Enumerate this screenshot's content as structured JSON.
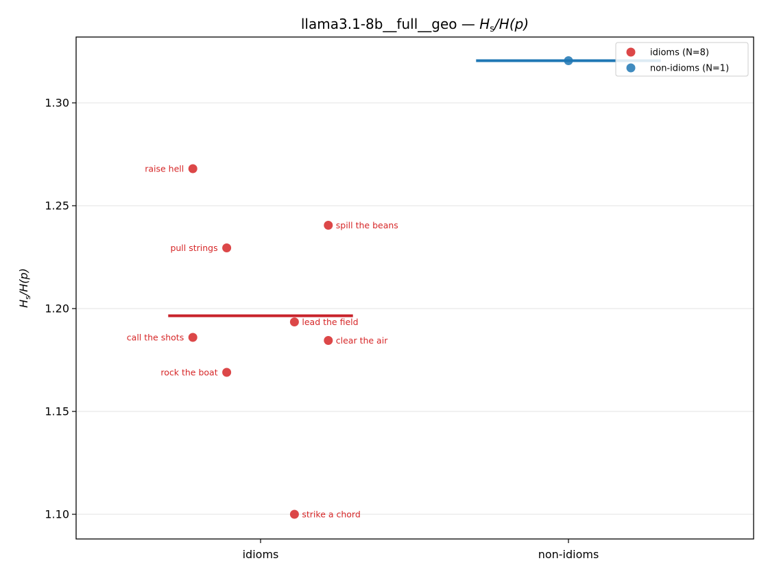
{
  "chart_data": {
    "type": "scatter",
    "title_main": "llama3.1-8b__full__geo — ",
    "title_math": "H",
    "title_math_sub": "s",
    "title_math_rest": "/H(p)",
    "ylabel_main": "H",
    "ylabel_sub": "s",
    "ylabel_rest": "/H(p)",
    "categories": [
      "idioms",
      "non-idioms"
    ],
    "ylim": [
      1.088,
      1.332
    ],
    "yticks": [
      "1.10",
      "1.15",
      "1.20",
      "1.25",
      "1.30"
    ],
    "ytick_values": [
      1.1,
      1.15,
      1.2,
      1.25,
      1.3
    ],
    "grid": "horizontal",
    "legend_position": "top-right",
    "colors": {
      "idioms": "#d62728",
      "non_idioms": "#1f77b4",
      "idioms_mean": "#c8222a",
      "non_idioms_mean": "#1f77b4"
    },
    "series": [
      {
        "name": "idioms (N=8)",
        "category": "idioms",
        "mean": 1.1965,
        "points": [
          {
            "label": "raise hell",
            "jitter": -0.22,
            "y": 1.268,
            "label_side": "left"
          },
          {
            "label": "spill the beans",
            "jitter": 0.22,
            "y": 1.2405,
            "label_side": "right"
          },
          {
            "label": "pull strings",
            "jitter": -0.11,
            "y": 1.2295,
            "label_side": "left"
          },
          {
            "label": "lead the field",
            "jitter": 0.11,
            "y": 1.1935,
            "label_side": "right"
          },
          {
            "label": "call the shots",
            "jitter": -0.22,
            "y": 1.186,
            "label_side": "left"
          },
          {
            "label": "clear the air",
            "jitter": 0.22,
            "y": 1.1845,
            "label_side": "right"
          },
          {
            "label": "rock the boat",
            "jitter": -0.11,
            "y": 1.169,
            "label_side": "left"
          },
          {
            "label": "strike a chord",
            "jitter": 0.11,
            "y": 1.1,
            "label_side": "right"
          }
        ]
      },
      {
        "name": "non-idioms (N=1)",
        "category": "non-idioms",
        "mean": 1.3205,
        "points": [
          {
            "label": "",
            "jitter": 0.0,
            "y": 1.3205,
            "label_side": "right"
          }
        ]
      }
    ]
  }
}
